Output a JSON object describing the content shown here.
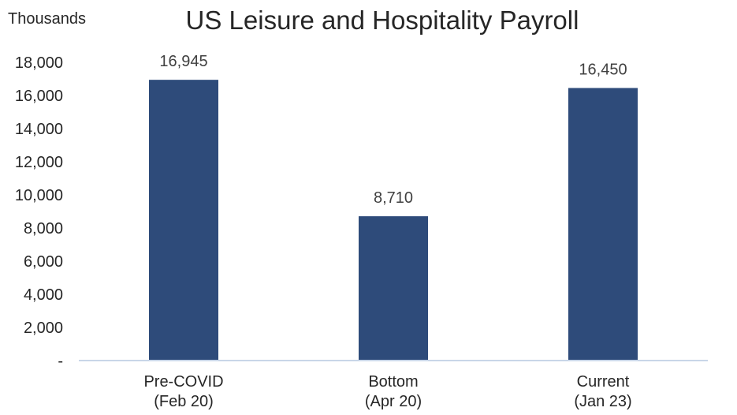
{
  "chart_data": {
    "type": "bar",
    "title": "US Leisure and Hospitality Payroll",
    "units_label": "Thousands",
    "categories": [
      [
        "Pre-COVID",
        "(Feb 20)"
      ],
      [
        "Bottom",
        "(Apr 20)"
      ],
      [
        "Current",
        "(Jan 23)"
      ]
    ],
    "values": [
      16945,
      8710,
      16450
    ],
    "data_labels": [
      "16,945",
      "8,710",
      "16,450"
    ],
    "ylim": [
      0,
      18000
    ],
    "yticks": [
      0,
      2000,
      4000,
      6000,
      8000,
      10000,
      12000,
      14000,
      16000,
      18000
    ],
    "ytick_labels": [
      "-",
      "2,000",
      "4,000",
      "6,000",
      "8,000",
      "10,000",
      "12,000",
      "14,000",
      "16,000",
      "18,000"
    ],
    "grid": false,
    "legend": "none",
    "bar_color": "#2E4B7A",
    "axis_color": "#C9D6E8"
  }
}
